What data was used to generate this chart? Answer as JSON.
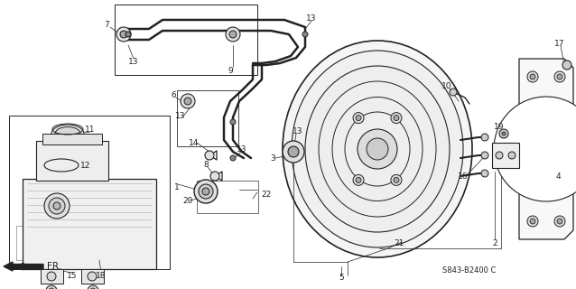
{
  "bg_color": "#ffffff",
  "line_color": "#222222",
  "diagram_ref": "S843-B2400 C",
  "figsize": [
    6.38,
    3.2
  ],
  "dpi": 100
}
